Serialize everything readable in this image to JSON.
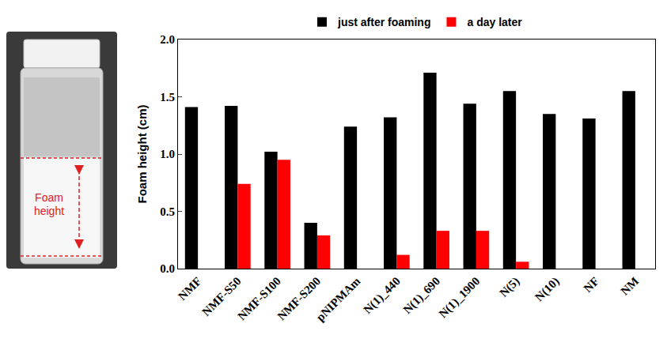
{
  "chart_data": {
    "type": "bar",
    "categories": [
      "NMF",
      "NMF-S50",
      "NMF-S100",
      "NMF-S200",
      "pNIPMAm",
      "N(1)_440",
      "N(1)_690",
      "N(1)_1900",
      "N(5)",
      "N(10)",
      "NF",
      "NM"
    ],
    "series": [
      {
        "name": "just after foaming",
        "color": "#000000",
        "values": [
          1.41,
          1.42,
          1.02,
          0.4,
          1.24,
          1.32,
          1.71,
          1.44,
          1.55,
          1.35,
          1.31,
          1.55
        ]
      },
      {
        "name": "a day later",
        "color": "#ff0000",
        "values": [
          0,
          0.74,
          0.95,
          0.29,
          0,
          0.12,
          0.33,
          0.33,
          0.06,
          0,
          0,
          0
        ]
      }
    ],
    "y_label": "Foam height (cm)",
    "ylim": [
      0,
      2
    ],
    "yticks": [
      {
        "value": 0,
        "label": "0.0"
      },
      {
        "value": 0.5,
        "label": "0.5"
      },
      {
        "value": 1,
        "label": "1.0"
      },
      {
        "value": 1.5,
        "label": "1.5"
      },
      {
        "value": 2,
        "label": "2.0"
      }
    ],
    "grid": false,
    "legend": "top",
    "inset_label": "Foam height"
  }
}
